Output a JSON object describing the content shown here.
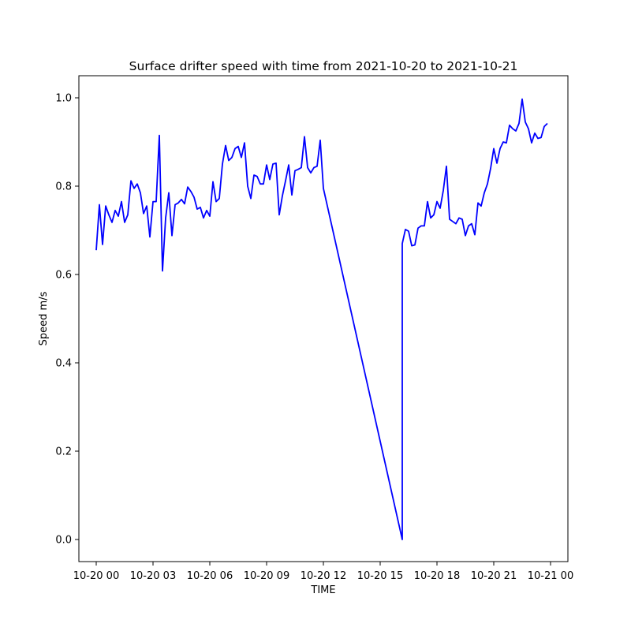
{
  "chart_data": {
    "type": "line",
    "title": "Surface drifter speed with time from 2021-10-20 to 2021-10-21",
    "xlabel": "TIME",
    "ylabel": "Speed m/s",
    "x_axis_type": "datetime",
    "xlim": [
      "2021-10-19 23:05",
      "2021-10-21 00:55"
    ],
    "ylim": [
      -0.05,
      1.05
    ],
    "grid": false,
    "line_color": "#0000ff",
    "x_ticks": [
      {
        "value": "2021-10-20 00:00",
        "label": "10-20 00"
      },
      {
        "value": "2021-10-20 03:00",
        "label": "10-20 03"
      },
      {
        "value": "2021-10-20 06:00",
        "label": "10-20 06"
      },
      {
        "value": "2021-10-20 09:00",
        "label": "10-20 09"
      },
      {
        "value": "2021-10-20 12:00",
        "label": "10-20 12"
      },
      {
        "value": "2021-10-20 15:00",
        "label": "10-20 15"
      },
      {
        "value": "2021-10-20 18:00",
        "label": "10-20 18"
      },
      {
        "value": "2021-10-20 21:00",
        "label": "10-20 21"
      },
      {
        "value": "2021-10-21 00:00",
        "label": "10-21 00"
      }
    ],
    "y_ticks": [
      {
        "value": 0.0,
        "label": "0.0"
      },
      {
        "value": 0.2,
        "label": "0.2"
      },
      {
        "value": 0.4,
        "label": "0.4"
      },
      {
        "value": 0.6,
        "label": "0.6"
      },
      {
        "value": 0.8,
        "label": "0.8"
      },
      {
        "value": 1.0,
        "label": "1.0"
      }
    ],
    "series": [
      {
        "x": [
          "2021-10-20 00:00",
          "2021-10-20 00:10",
          "2021-10-20 00:20",
          "2021-10-20 00:30",
          "2021-10-20 00:40",
          "2021-10-20 00:50",
          "2021-10-20 01:00",
          "2021-10-20 01:10",
          "2021-10-20 01:20",
          "2021-10-20 01:30",
          "2021-10-20 01:40",
          "2021-10-20 01:50",
          "2021-10-20 02:00",
          "2021-10-20 02:10",
          "2021-10-20 02:20",
          "2021-10-20 02:30",
          "2021-10-20 02:40",
          "2021-10-20 02:50",
          "2021-10-20 03:00",
          "2021-10-20 03:10",
          "2021-10-20 03:20",
          "2021-10-20 03:30",
          "2021-10-20 03:40",
          "2021-10-20 03:50",
          "2021-10-20 04:00",
          "2021-10-20 04:10",
          "2021-10-20 04:20",
          "2021-10-20 04:30",
          "2021-10-20 04:40",
          "2021-10-20 04:50",
          "2021-10-20 05:00",
          "2021-10-20 05:10",
          "2021-10-20 05:20",
          "2021-10-20 05:30",
          "2021-10-20 05:40",
          "2021-10-20 05:50",
          "2021-10-20 06:00",
          "2021-10-20 06:10",
          "2021-10-20 06:20",
          "2021-10-20 06:30",
          "2021-10-20 06:40",
          "2021-10-20 06:50",
          "2021-10-20 07:00",
          "2021-10-20 07:10",
          "2021-10-20 07:20",
          "2021-10-20 07:30",
          "2021-10-20 07:40",
          "2021-10-20 07:50",
          "2021-10-20 08:00",
          "2021-10-20 08:10",
          "2021-10-20 08:20",
          "2021-10-20 08:30",
          "2021-10-20 08:40",
          "2021-10-20 08:50",
          "2021-10-20 09:00",
          "2021-10-20 09:10",
          "2021-10-20 09:20",
          "2021-10-20 09:30",
          "2021-10-20 09:40",
          "2021-10-20 09:50",
          "2021-10-20 10:00",
          "2021-10-20 10:10",
          "2021-10-20 10:20",
          "2021-10-20 10:30",
          "2021-10-20 10:40",
          "2021-10-20 10:50",
          "2021-10-20 11:00",
          "2021-10-20 11:10",
          "2021-10-20 11:20",
          "2021-10-20 11:30",
          "2021-10-20 11:40",
          "2021-10-20 11:50",
          "2021-10-20 12:00",
          "2021-10-20 16:10",
          "2021-10-20 16:10",
          "2021-10-20 16:20",
          "2021-10-20 16:30",
          "2021-10-20 16:40",
          "2021-10-20 16:50",
          "2021-10-20 17:00",
          "2021-10-20 17:10",
          "2021-10-20 17:20",
          "2021-10-20 17:30",
          "2021-10-20 17:40",
          "2021-10-20 17:50",
          "2021-10-20 18:00",
          "2021-10-20 18:10",
          "2021-10-20 18:20",
          "2021-10-20 18:30",
          "2021-10-20 18:40",
          "2021-10-20 18:50",
          "2021-10-20 19:00",
          "2021-10-20 19:10",
          "2021-10-20 19:20",
          "2021-10-20 19:30",
          "2021-10-20 19:40",
          "2021-10-20 19:50",
          "2021-10-20 20:00",
          "2021-10-20 20:10",
          "2021-10-20 20:20",
          "2021-10-20 20:30",
          "2021-10-20 20:40",
          "2021-10-20 20:50",
          "2021-10-20 21:00",
          "2021-10-20 21:10",
          "2021-10-20 21:20",
          "2021-10-20 21:30",
          "2021-10-20 21:40",
          "2021-10-20 21:50",
          "2021-10-20 22:00",
          "2021-10-20 22:10",
          "2021-10-20 22:20",
          "2021-10-20 22:30",
          "2021-10-20 22:40",
          "2021-10-20 22:50",
          "2021-10-20 23:00",
          "2021-10-20 23:10",
          "2021-10-20 23:20",
          "2021-10-20 23:30",
          "2021-10-20 23:40",
          "2021-10-20 23:50"
        ],
        "y": [
          0.655,
          0.758,
          0.668,
          0.755,
          0.735,
          0.718,
          0.745,
          0.732,
          0.765,
          0.718,
          0.735,
          0.812,
          0.795,
          0.805,
          0.785,
          0.738,
          0.755,
          0.685,
          0.765,
          0.765,
          0.915,
          0.608,
          0.728,
          0.785,
          0.688,
          0.758,
          0.762,
          0.77,
          0.76,
          0.798,
          0.788,
          0.775,
          0.748,
          0.752,
          0.728,
          0.745,
          0.732,
          0.81,
          0.765,
          0.772,
          0.85,
          0.892,
          0.858,
          0.865,
          0.885,
          0.89,
          0.865,
          0.898,
          0.8,
          0.772,
          0.825,
          0.822,
          0.805,
          0.805,
          0.848,
          0.815,
          0.85,
          0.852,
          0.735,
          0.778,
          0.812,
          0.848,
          0.78,
          0.835,
          0.838,
          0.842,
          0.912,
          0.842,
          0.83,
          0.842,
          0.845,
          0.904,
          0.795,
          0.0,
          0.67,
          0.702,
          0.698,
          0.665,
          0.667,
          0.705,
          0.71,
          0.71,
          0.765,
          0.728,
          0.735,
          0.765,
          0.75,
          0.79,
          0.845,
          0.725,
          0.72,
          0.715,
          0.728,
          0.725,
          0.688,
          0.71,
          0.715,
          0.69,
          0.762,
          0.755,
          0.785,
          0.805,
          0.84,
          0.885,
          0.852,
          0.885,
          0.9,
          0.898,
          0.938,
          0.93,
          0.925,
          0.942,
          0.997,
          0.945,
          0.93,
          0.898,
          0.92,
          0.908,
          0.91,
          0.935,
          0.942
        ]
      }
    ]
  }
}
